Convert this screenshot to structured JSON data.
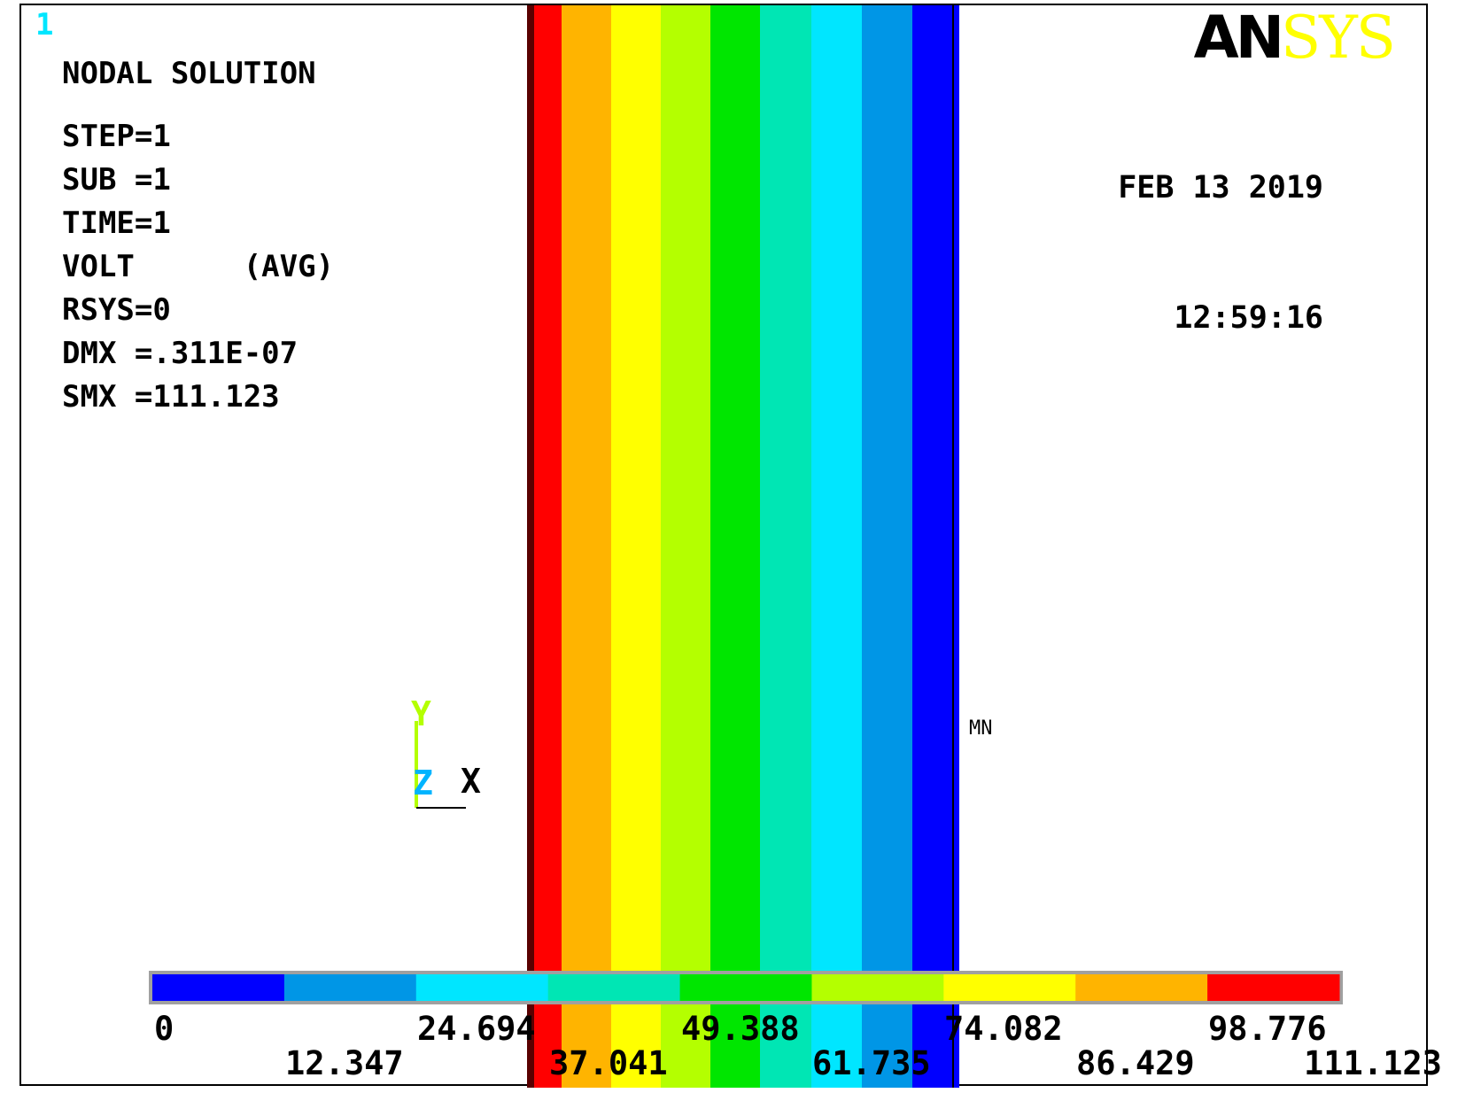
{
  "window_number": "1",
  "logo": {
    "an": "AN",
    "sys": "SYS"
  },
  "title": "NODAL SOLUTION",
  "info_lines": [
    "STEP=1",
    "SUB =1",
    "TIME=1",
    "VOLT      (AVG)",
    "RSYS=0",
    "DMX =.311E-07",
    "SMX =111.123"
  ],
  "date": "FEB 13 2019",
  "time": "12:59:16",
  "triad": {
    "y": "Y",
    "z": "Z",
    "x": "X"
  },
  "mn_label": "MN",
  "colors": {
    "contour_bands": [
      "#0000ff",
      "#0096e6",
      "#00e6ff",
      "#00e6b4",
      "#00e600",
      "#b4ff00",
      "#ffff00",
      "#ffb400",
      "#ff0000"
    ],
    "edge_dark": "#5a0000",
    "frame": "#000000",
    "triad_y": "#b4ff00",
    "triad_z": "#00b4ff",
    "window_num": "#00e6ff"
  },
  "legend": {
    "values_top": [
      "0",
      "24.694",
      "49.388",
      "74.082",
      "98.776"
    ],
    "values_bottom": [
      "12.347",
      "37.041",
      "61.735",
      "86.429",
      "111.123"
    ]
  }
}
